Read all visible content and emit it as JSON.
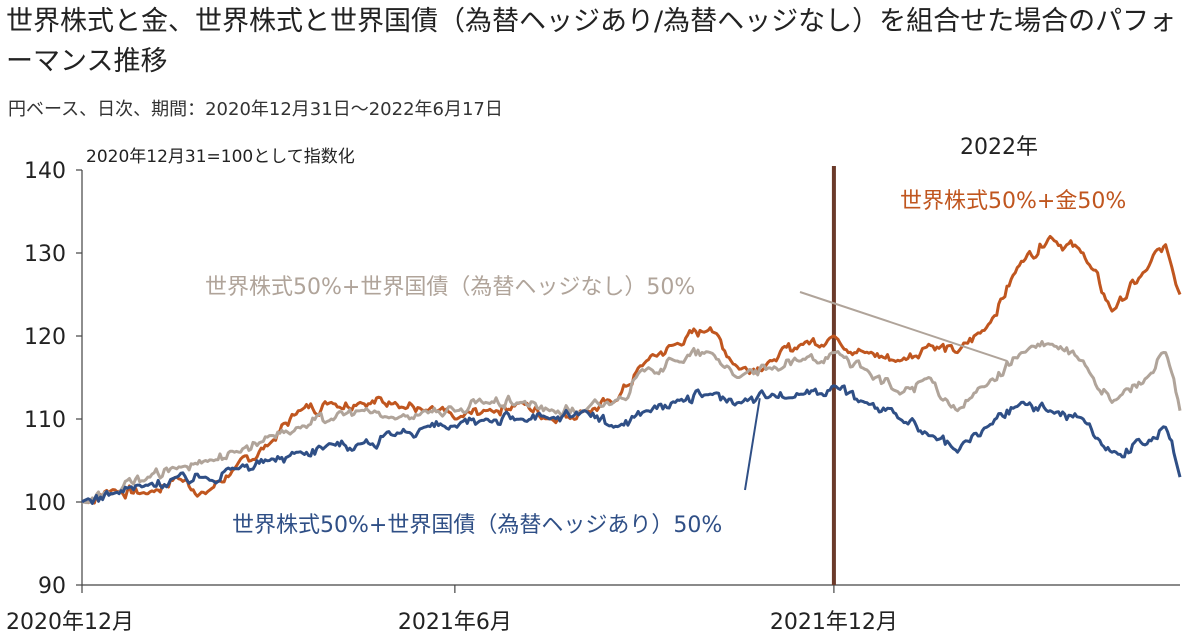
{
  "header": {
    "title": "世界株式と金、世界株式と世界国債（為替ヘッジあり/為替ヘッジなし）を組合せた場合のパフォーマンス推移",
    "subtitle": "円ベース、日次、期間：2020年12月31日～2022年6月17日"
  },
  "chart_data": {
    "type": "line",
    "index_note": "2020年12月31=100として指数化",
    "year_marker": "2022年",
    "ylim": [
      90,
      140
    ],
    "yticks": [
      90,
      100,
      110,
      120,
      130,
      140
    ],
    "x_range": [
      "2020-12-31",
      "2022-06-17"
    ],
    "xticks": [
      {
        "date": "2020-12-31",
        "label": "2020年12月"
      },
      {
        "date": "2021-06-30",
        "label": "2021年6月"
      },
      {
        "date": "2021-12-31",
        "label": "2021年12月"
      }
    ],
    "marker_date": "2021-12-31",
    "series": [
      {
        "name": "世界株式50%+金50%",
        "color": "#c0561f",
        "points": [
          [
            "2020-12-31",
            100
          ],
          [
            "2021-01-15",
            101.5
          ],
          [
            "2021-02-01",
            101
          ],
          [
            "2021-02-15",
            103
          ],
          [
            "2021-03-01",
            101
          ],
          [
            "2021-03-15",
            104
          ],
          [
            "2021-04-01",
            107
          ],
          [
            "2021-04-15",
            111
          ],
          [
            "2021-05-01",
            112
          ],
          [
            "2021-05-15",
            112
          ],
          [
            "2021-06-01",
            112
          ],
          [
            "2021-06-15",
            111
          ],
          [
            "2021-07-01",
            110
          ],
          [
            "2021-07-15",
            111
          ],
          [
            "2021-08-01",
            112
          ],
          [
            "2021-08-15",
            110
          ],
          [
            "2021-09-01",
            111
          ],
          [
            "2021-09-15",
            112
          ],
          [
            "2021-10-01",
            117
          ],
          [
            "2021-10-15",
            119
          ],
          [
            "2021-11-01",
            121
          ],
          [
            "2021-11-15",
            116
          ],
          [
            "2021-12-01",
            117
          ],
          [
            "2021-12-15",
            119
          ],
          [
            "2021-12-31",
            120
          ],
          [
            "2022-01-15",
            118
          ],
          [
            "2022-02-01",
            117
          ],
          [
            "2022-02-15",
            119
          ],
          [
            "2022-03-01",
            118
          ],
          [
            "2022-03-15",
            121
          ],
          [
            "2022-04-01",
            129
          ],
          [
            "2022-04-15",
            132
          ],
          [
            "2022-05-01",
            130
          ],
          [
            "2022-05-15",
            123
          ],
          [
            "2022-06-01",
            128
          ],
          [
            "2022-06-10",
            131
          ],
          [
            "2022-06-17",
            125
          ]
        ]
      },
      {
        "name": "世界株式50%+世界国債（為替ヘッジなし）50%",
        "color": "#b0a49a",
        "points": [
          [
            "2020-12-31",
            100
          ],
          [
            "2021-01-15",
            101
          ],
          [
            "2021-02-01",
            103
          ],
          [
            "2021-02-15",
            104
          ],
          [
            "2021-03-01",
            105
          ],
          [
            "2021-03-15",
            106
          ],
          [
            "2021-04-01",
            108
          ],
          [
            "2021-04-15",
            109
          ],
          [
            "2021-05-01",
            110
          ],
          [
            "2021-05-15",
            111
          ],
          [
            "2021-06-01",
            110
          ],
          [
            "2021-06-15",
            111
          ],
          [
            "2021-07-01",
            111
          ],
          [
            "2021-07-15",
            112
          ],
          [
            "2021-08-01",
            112
          ],
          [
            "2021-08-15",
            111
          ],
          [
            "2021-09-01",
            111
          ],
          [
            "2021-09-15",
            112
          ],
          [
            "2021-10-01",
            116
          ],
          [
            "2021-10-15",
            117
          ],
          [
            "2021-11-01",
            118
          ],
          [
            "2021-11-15",
            115
          ],
          [
            "2021-12-01",
            116
          ],
          [
            "2021-12-15",
            117
          ],
          [
            "2021-12-31",
            118
          ],
          [
            "2022-01-15",
            116
          ],
          [
            "2022-02-01",
            113
          ],
          [
            "2022-02-15",
            115
          ],
          [
            "2022-03-01",
            111
          ],
          [
            "2022-03-15",
            114
          ],
          [
            "2022-04-01",
            118
          ],
          [
            "2022-04-15",
            119
          ],
          [
            "2022-05-01",
            117
          ],
          [
            "2022-05-15",
            112
          ],
          [
            "2022-06-01",
            115
          ],
          [
            "2022-06-10",
            118
          ],
          [
            "2022-06-17",
            111
          ]
        ]
      },
      {
        "name": "世界株式50%+世界国債（為替ヘッジあり）50%",
        "color": "#2f4f86",
        "points": [
          [
            "2020-12-31",
            100
          ],
          [
            "2021-01-15",
            101
          ],
          [
            "2021-02-01",
            102
          ],
          [
            "2021-02-15",
            103
          ],
          [
            "2021-03-01",
            103
          ],
          [
            "2021-03-15",
            104
          ],
          [
            "2021-04-01",
            105
          ],
          [
            "2021-04-15",
            106
          ],
          [
            "2021-05-01",
            107
          ],
          [
            "2021-05-15",
            107
          ],
          [
            "2021-06-01",
            108
          ],
          [
            "2021-06-15",
            109
          ],
          [
            "2021-07-01",
            109
          ],
          [
            "2021-07-15",
            110
          ],
          [
            "2021-08-01",
            110
          ],
          [
            "2021-08-15",
            110
          ],
          [
            "2021-09-01",
            111
          ],
          [
            "2021-09-15",
            109
          ],
          [
            "2021-10-01",
            111
          ],
          [
            "2021-10-15",
            112
          ],
          [
            "2021-11-01",
            113
          ],
          [
            "2021-11-15",
            112
          ],
          [
            "2021-12-01",
            113
          ],
          [
            "2021-12-15",
            113
          ],
          [
            "2021-12-31",
            114
          ],
          [
            "2022-01-15",
            112
          ],
          [
            "2022-02-01",
            110
          ],
          [
            "2022-02-15",
            108
          ],
          [
            "2022-03-01",
            106
          ],
          [
            "2022-03-15",
            109
          ],
          [
            "2022-04-01",
            112
          ],
          [
            "2022-04-15",
            111
          ],
          [
            "2022-05-01",
            110
          ],
          [
            "2022-05-15",
            106
          ],
          [
            "2022-06-01",
            107
          ],
          [
            "2022-06-10",
            109
          ],
          [
            "2022-06-17",
            103
          ]
        ]
      }
    ]
  }
}
